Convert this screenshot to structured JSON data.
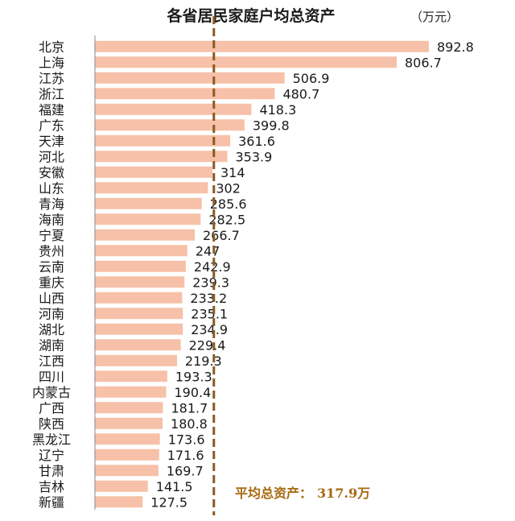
{
  "chart_data": {
    "type": "bar",
    "orientation": "horizontal",
    "title": "各省居民家庭户均总资产",
    "unit": "（万元）",
    "categories": [
      "北京",
      "上海",
      "江苏",
      "浙江",
      "福建",
      "广东",
      "天津",
      "河北",
      "安徽",
      "山东",
      "青海",
      "海南",
      "宁夏",
      "贵州",
      "云南",
      "重庆",
      "山西",
      "河南",
      "湖北",
      "湖南",
      "江西",
      "四川",
      "内蒙古",
      "广西",
      "陕西",
      "黑龙江",
      "辽宁",
      "甘肃",
      "吉林",
      "新疆"
    ],
    "values": [
      892.8,
      806.7,
      506.9,
      480.7,
      418.3,
      399.8,
      361.6,
      353.9,
      314,
      302,
      285.6,
      282.5,
      266.7,
      247,
      242.9,
      239.3,
      233.2,
      235.1,
      234.9,
      229.4,
      219.3,
      193.3,
      190.4,
      181.7,
      180.8,
      173.6,
      171.6,
      169.7,
      141.5,
      127.5
    ],
    "value_labels": [
      "892.8",
      "806.7",
      "506.9",
      "480.7",
      "418.3",
      "399.8",
      "361.6",
      "353.9",
      "314",
      "302",
      "285.6",
      "282.5",
      "266.7",
      "247",
      "242.9",
      "239.3",
      "233.2",
      "235.1",
      "234.9",
      "229.4",
      "219.3",
      "193.3",
      "190.4",
      "181.7",
      "180.8",
      "173.6",
      "171.6",
      "169.7",
      "141.5",
      "127.5"
    ],
    "reference_line": {
      "value": 317.9,
      "style": "dashed",
      "label_prefix": "平均总资产：",
      "label_value": "317.9万"
    },
    "bar_color": "#f6c1a8",
    "reference_color": "#8a5a22",
    "axis_color": "#8a8a8a",
    "grid": false,
    "legend": "none"
  }
}
